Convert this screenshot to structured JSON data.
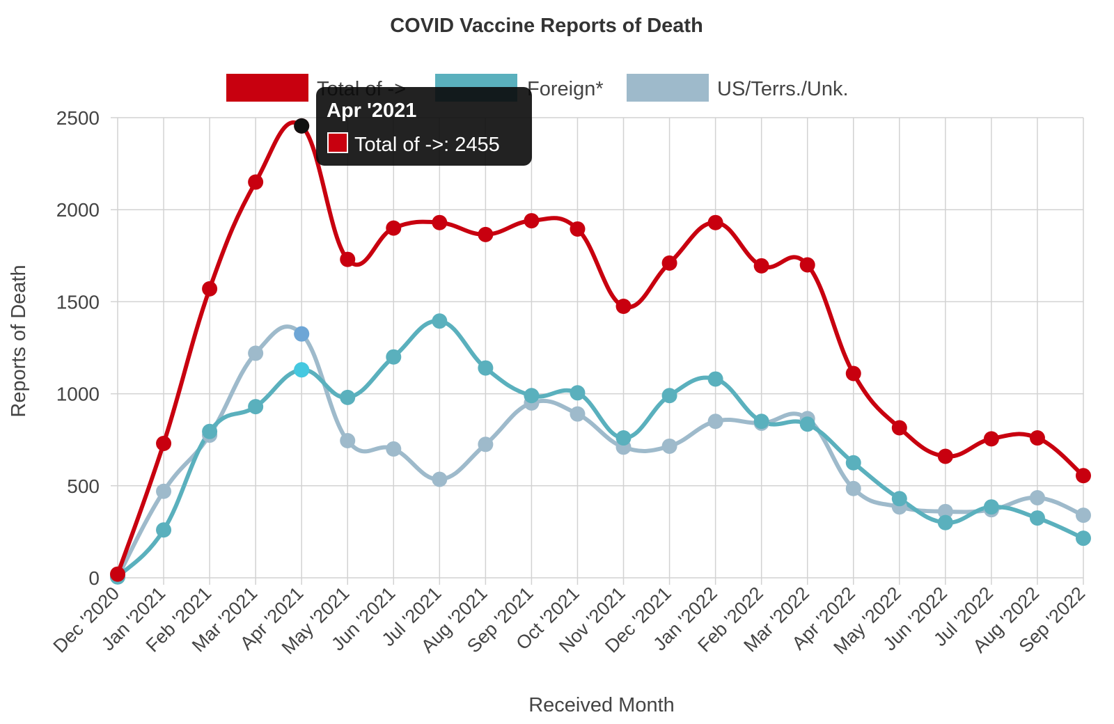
{
  "chart_data": {
    "type": "line",
    "title": "COVID Vaccine Reports of Death",
    "xlabel": "Received Month",
    "ylabel": "Reports of Death",
    "ylim": [
      0,
      2500
    ],
    "yticks": [
      0,
      500,
      1000,
      1500,
      2000,
      2500
    ],
    "grid": true,
    "legend_position": "top",
    "categories": [
      "Dec '2020",
      "Jan '2021",
      "Feb '2021",
      "Mar '2021",
      "Apr '2021",
      "May '2021",
      "Jun '2021",
      "Jul '2021",
      "Aug '2021",
      "Sep '2021",
      "Oct '2021",
      "Nov '2021",
      "Dec '2021",
      "Jan '2022",
      "Feb '2022",
      "Mar '2022",
      "Apr '2022",
      "May '2022",
      "Jun '2022",
      "Jul '2022",
      "Aug '2022",
      "Sep '2022"
    ],
    "series": [
      {
        "name": "Total of ->",
        "color": "#c8000f",
        "values": [
          20,
          730,
          1570,
          2150,
          2455,
          1730,
          1900,
          1930,
          1865,
          1940,
          1895,
          1475,
          1710,
          1930,
          1695,
          1700,
          1110,
          815,
          660,
          755,
          760,
          555
        ]
      },
      {
        "name": "Foreign*",
        "color": "#5ab0bd",
        "values": [
          5,
          260,
          795,
          930,
          1130,
          980,
          1200,
          1395,
          1140,
          990,
          1005,
          760,
          990,
          1080,
          850,
          835,
          625,
          430,
          300,
          385,
          325,
          215
        ]
      },
      {
        "name": "US/Terrs./Unk.",
        "color": "#9ebacb",
        "values": [
          5,
          470,
          775,
          1220,
          1325,
          745,
          700,
          535,
          725,
          950,
          890,
          710,
          715,
          850,
          840,
          865,
          485,
          385,
          360,
          370,
          435,
          340
        ]
      }
    ],
    "tooltip": {
      "title": "Apr '2021",
      "label": "Total of ->: 2455",
      "category_index": 4,
      "series_index": 0
    }
  }
}
